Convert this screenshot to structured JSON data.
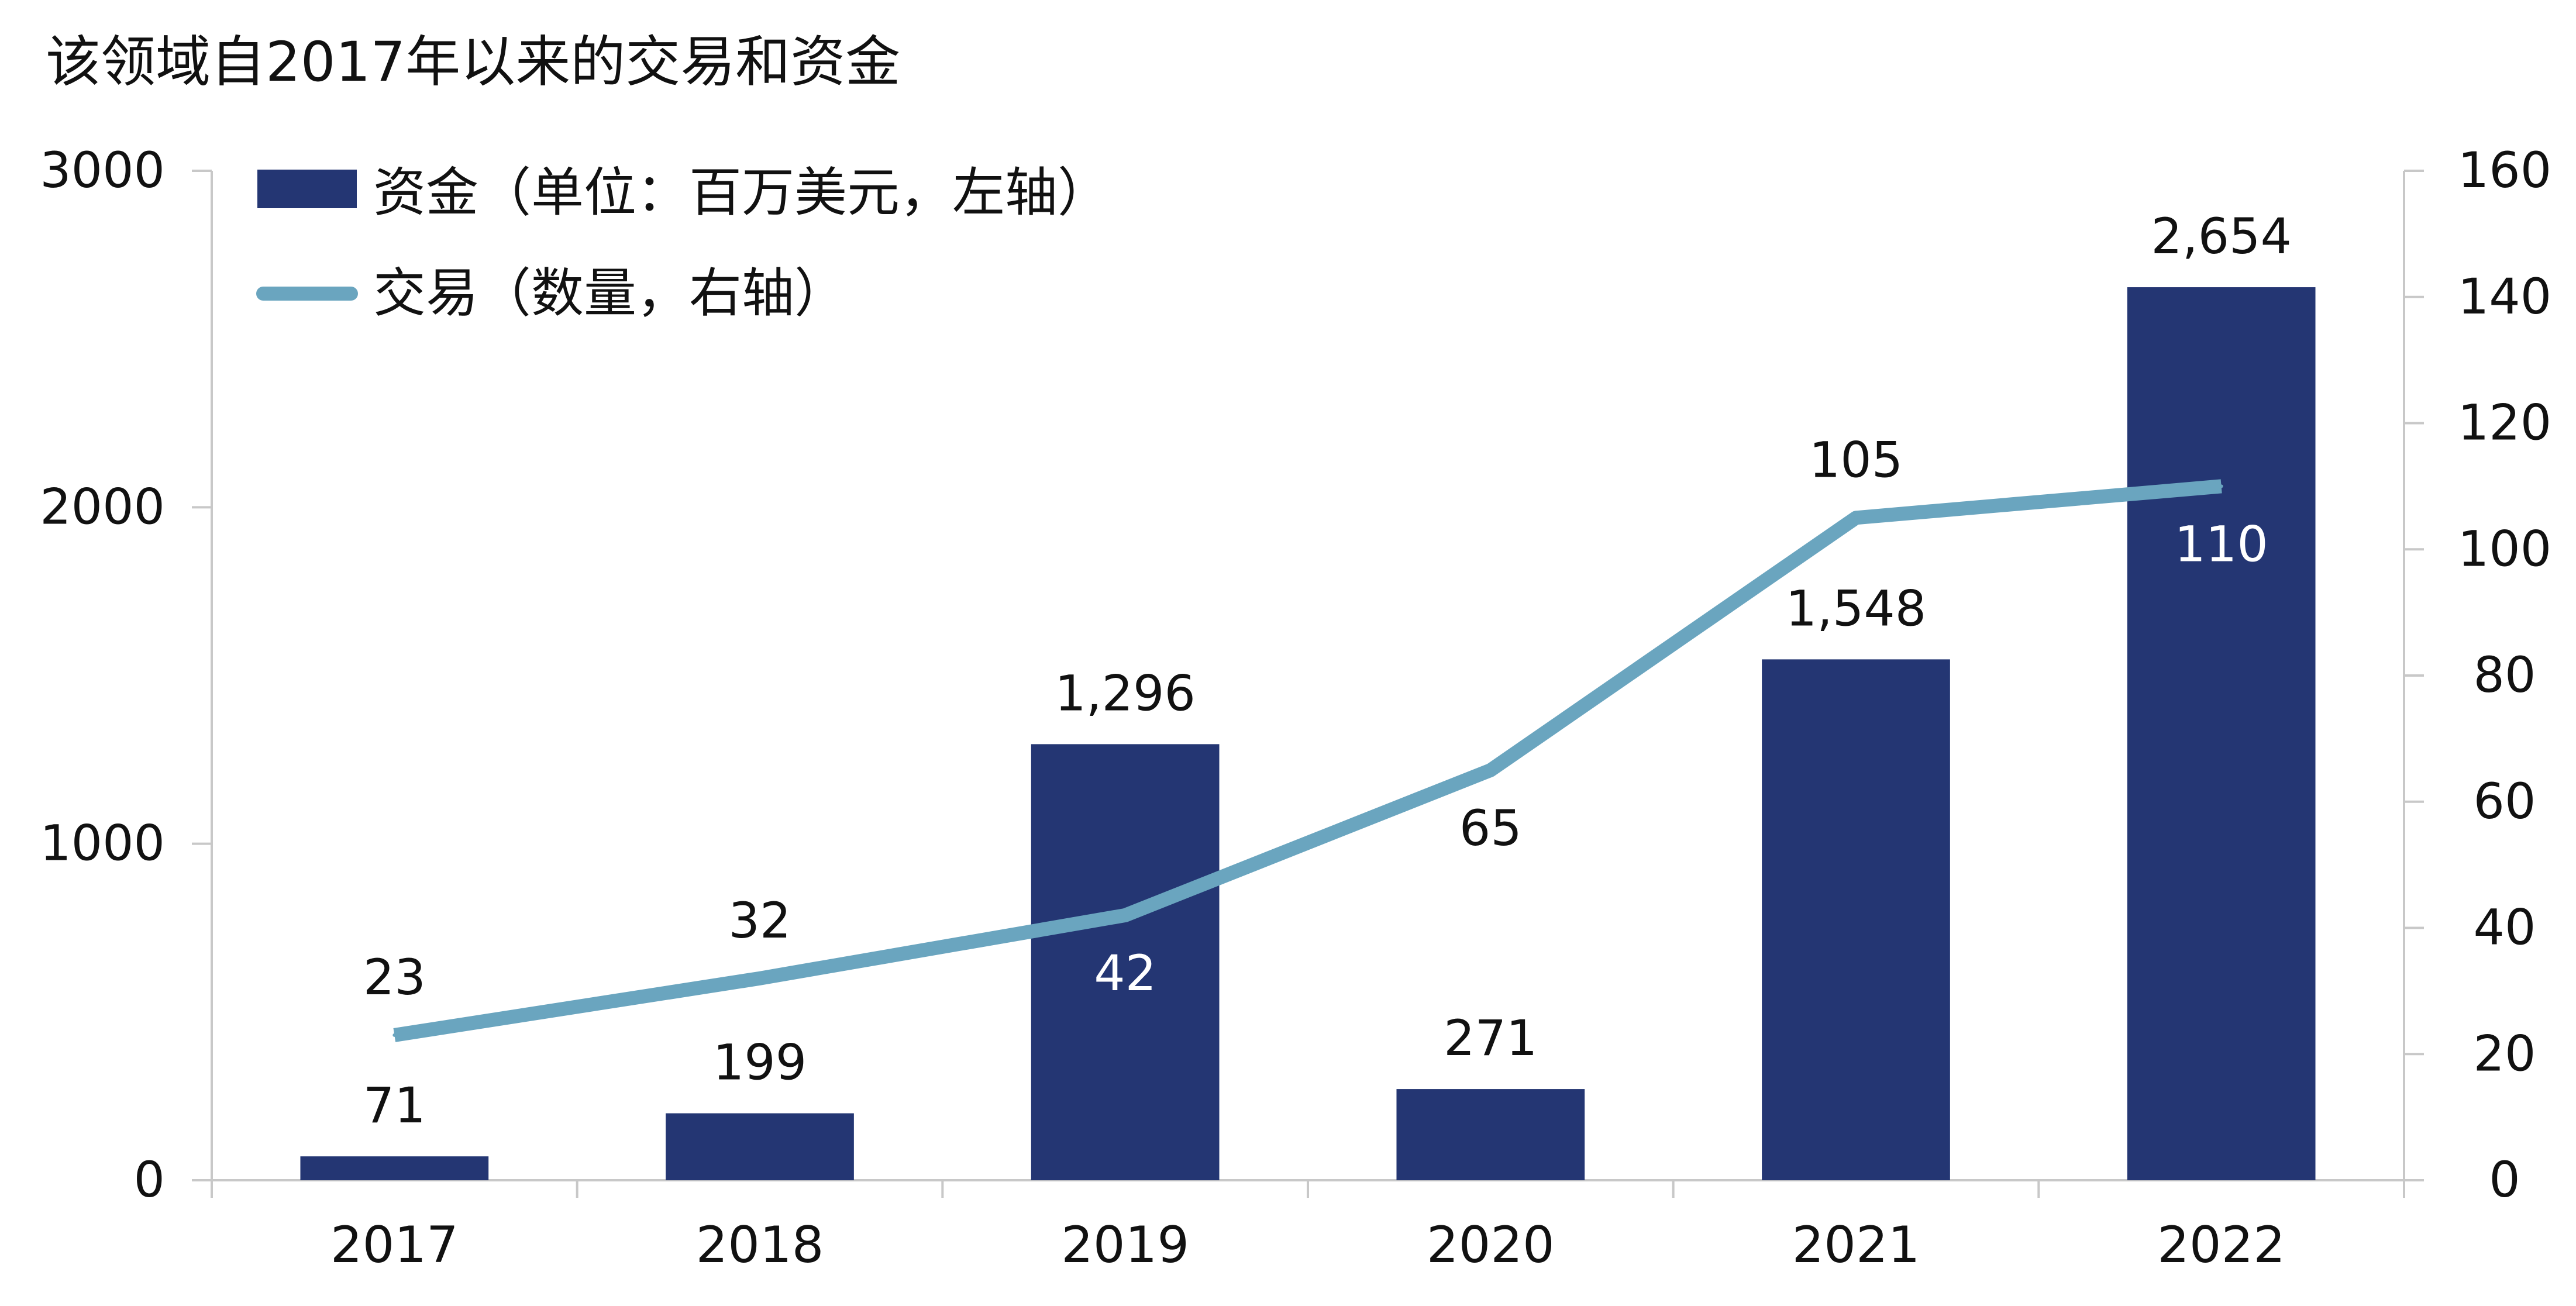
{
  "chart_data": {
    "type": "bar+line",
    "title": "该领域自2017年以来的交易和资金",
    "categories": [
      "2017",
      "2018",
      "2019",
      "2020",
      "2021",
      "2022"
    ],
    "series": [
      {
        "name": "资金（单位：百万美元，左轴）",
        "type": "bar",
        "axis": "left",
        "values": [
          71,
          199,
          1296,
          271,
          1548,
          2654
        ],
        "labels": [
          "71",
          "199",
          "1,296",
          "271",
          "1,548",
          "2,654"
        ],
        "color": "#243673"
      },
      {
        "name": "交易（数量，右轴）",
        "type": "line",
        "axis": "right",
        "values": [
          23,
          32,
          42,
          65,
          105,
          110
        ],
        "labels": [
          "23",
          "32",
          "42",
          "65",
          "105",
          "110"
        ],
        "color": "#6aa5bf"
      }
    ],
    "y_left": {
      "min": 0,
      "max": 3000,
      "ticks": [
        "0",
        "1000",
        "2000",
        "3000"
      ]
    },
    "y_right": {
      "min": 0,
      "max": 160,
      "ticks": [
        "0",
        "20",
        "40",
        "60",
        "80",
        "100",
        "120",
        "140",
        "160"
      ]
    },
    "legend_position": "top-left",
    "grid": false
  }
}
